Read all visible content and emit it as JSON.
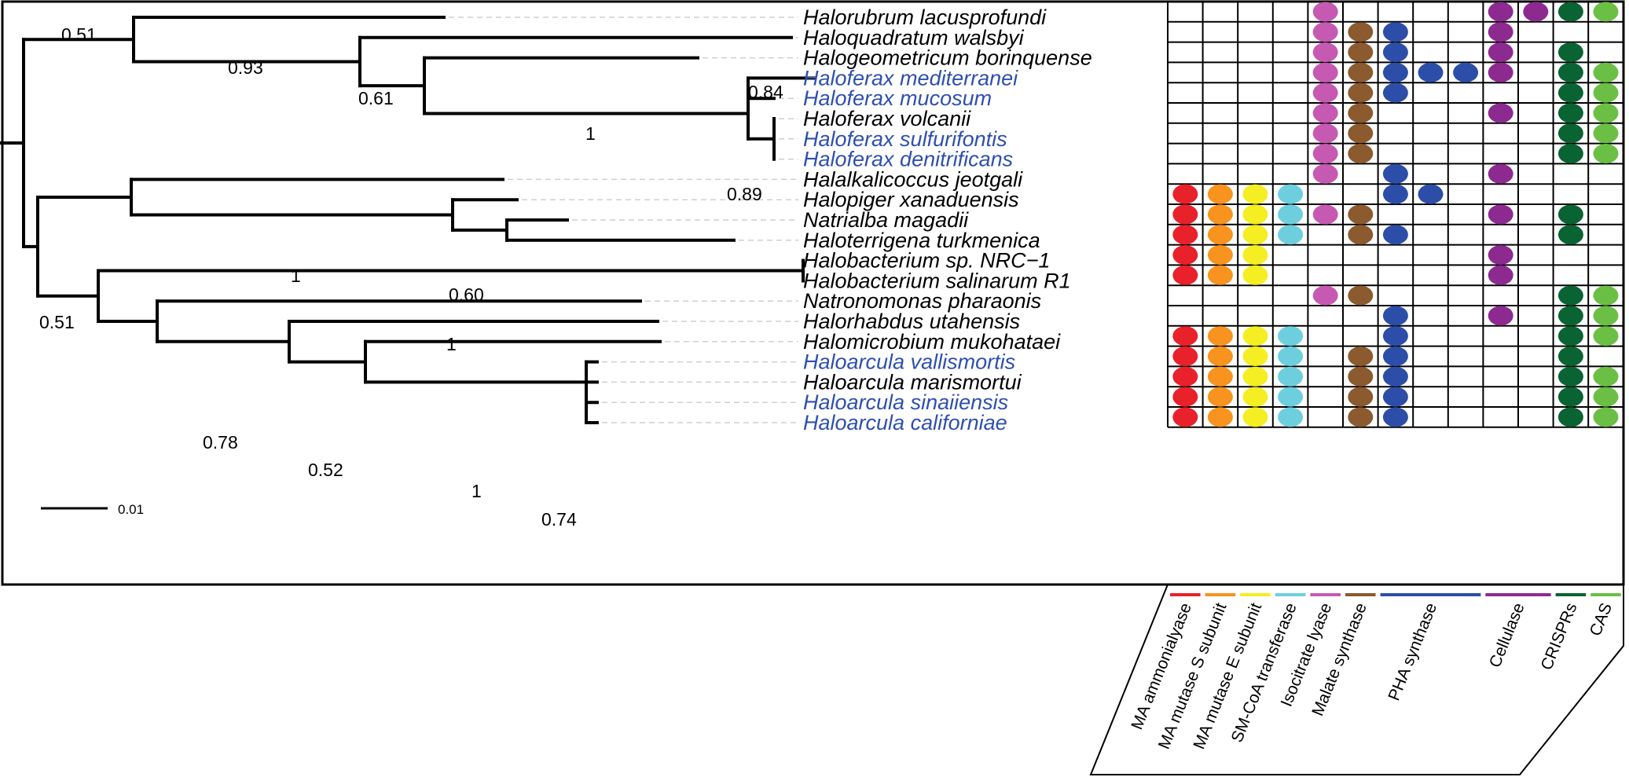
{
  "colors": {
    "novel_taxon": "#2e4fae",
    "known_taxon": "#000000",
    "MA ammonialyase": "#e8212b",
    "MA mutase S subunit": "#f7931e",
    "MA mutase E subunit": "#f4ee22",
    "SM-CoA transferase": "#6dcfde",
    "Isocitrate lyase": "#c65ab2",
    "Malate synthase": "#8b5a2f",
    "PHA synthase": "#2c4ea8",
    "Cellulase": "#8d2a90",
    "CRISPRs": "#0a6332",
    "CAS": "#6bbf44"
  },
  "tree": {
    "scale_bar_label": "0.01",
    "support_values": {
      "n_root_upper": "0.51",
      "n_quad": "0.93",
      "n_geo": "0.61",
      "n_medmuc": "0.84",
      "n_fax": "1",
      "n_vol": "0.89",
      "n_root_lower": "0.51",
      "n_pig": "1",
      "n_nat": "0.60",
      "n_hbac": "1",
      "n_rh": "0.78",
      "n_mic": "0.52",
      "n_arc": "1",
      "n_arc_inner": "0.74"
    }
  },
  "matrix": {
    "columns": [
      {
        "label": "MA ammonialyase",
        "span": 1
      },
      {
        "label": "MA mutase S subunit",
        "span": 1
      },
      {
        "label": "MA mutase E subunit",
        "span": 1
      },
      {
        "label": "SM-CoA transferase",
        "span": 1
      },
      {
        "label": "Isocitrate lyase",
        "span": 1
      },
      {
        "label": "Malate synthase",
        "span": 1
      },
      {
        "label": "PHA synthase",
        "span": 3
      },
      {
        "label": "Cellulase",
        "span": 2
      },
      {
        "label": "CRISPRs",
        "span": 1
      },
      {
        "label": "CAS",
        "span": 1
      }
    ],
    "cell_genes": [
      "MA ammonialyase",
      "MA mutase S subunit",
      "MA mutase E subunit",
      "SM-CoA transferase",
      "Isocitrate lyase",
      "Malate synthase",
      "PHA synthase",
      "PHA synthase",
      "PHA synthase",
      "Cellulase",
      "Cellulase",
      "CRISPRs",
      "CAS"
    ],
    "rows": [
      {
        "taxon": "Halorubrum lacusprofundi",
        "novel": false,
        "presence": [
          0,
          0,
          0,
          0,
          1,
          0,
          0,
          0,
          0,
          1,
          1,
          1,
          1
        ]
      },
      {
        "taxon": "Haloquadratum walsbyi",
        "novel": false,
        "presence": [
          0,
          0,
          0,
          0,
          1,
          1,
          1,
          0,
          0,
          1,
          0,
          0,
          0
        ]
      },
      {
        "taxon": "Halogeometricum borinquense",
        "novel": false,
        "presence": [
          0,
          0,
          0,
          0,
          1,
          1,
          1,
          0,
          0,
          1,
          0,
          1,
          0
        ]
      },
      {
        "taxon": "Haloferax mediterranei",
        "novel": true,
        "presence": [
          0,
          0,
          0,
          0,
          1,
          1,
          1,
          1,
          1,
          1,
          0,
          1,
          1
        ]
      },
      {
        "taxon": "Haloferax mucosum",
        "novel": true,
        "presence": [
          0,
          0,
          0,
          0,
          1,
          1,
          1,
          0,
          0,
          0,
          0,
          1,
          1
        ]
      },
      {
        "taxon": "Haloferax volcanii",
        "novel": false,
        "presence": [
          0,
          0,
          0,
          0,
          1,
          1,
          0,
          0,
          0,
          1,
          0,
          1,
          1
        ]
      },
      {
        "taxon": "Haloferax sulfurifontis",
        "novel": true,
        "presence": [
          0,
          0,
          0,
          0,
          1,
          1,
          0,
          0,
          0,
          0,
          0,
          1,
          1
        ]
      },
      {
        "taxon": "Haloferax denitrificans",
        "novel": true,
        "presence": [
          0,
          0,
          0,
          0,
          1,
          1,
          0,
          0,
          0,
          0,
          0,
          1,
          1
        ]
      },
      {
        "taxon": "Halalkalicoccus jeotgali",
        "novel": false,
        "presence": [
          0,
          0,
          0,
          0,
          1,
          0,
          1,
          0,
          0,
          1,
          0,
          0,
          0
        ]
      },
      {
        "taxon": "Halopiger xanaduensis",
        "novel": false,
        "presence": [
          1,
          1,
          1,
          1,
          0,
          0,
          1,
          1,
          0,
          0,
          0,
          0,
          0
        ]
      },
      {
        "taxon": "Natrialba magadii",
        "novel": false,
        "presence": [
          1,
          1,
          1,
          1,
          1,
          1,
          0,
          0,
          0,
          1,
          0,
          1,
          0
        ]
      },
      {
        "taxon": "Haloterrigena turkmenica",
        "novel": false,
        "presence": [
          1,
          1,
          1,
          1,
          0,
          1,
          1,
          0,
          0,
          0,
          0,
          1,
          0
        ]
      },
      {
        "taxon": "Halobacterium sp. NRC−1",
        "novel": false,
        "presence": [
          1,
          1,
          1,
          0,
          0,
          0,
          0,
          0,
          0,
          1,
          0,
          0,
          0
        ]
      },
      {
        "taxon": "Halobacterium salinarum R1",
        "novel": false,
        "presence": [
          1,
          1,
          1,
          0,
          0,
          0,
          0,
          0,
          0,
          1,
          0,
          0,
          0
        ]
      },
      {
        "taxon": "Natronomonas pharaonis",
        "novel": false,
        "presence": [
          0,
          0,
          0,
          0,
          1,
          1,
          0,
          0,
          0,
          0,
          0,
          1,
          1
        ]
      },
      {
        "taxon": "Halorhabdus utahensis",
        "novel": false,
        "presence": [
          0,
          0,
          0,
          0,
          0,
          0,
          1,
          0,
          0,
          1,
          0,
          1,
          1
        ]
      },
      {
        "taxon": "Halomicrobium mukohataei",
        "novel": false,
        "presence": [
          1,
          1,
          1,
          1,
          0,
          0,
          1,
          0,
          0,
          0,
          0,
          1,
          1
        ]
      },
      {
        "taxon": "Haloarcula vallismortis",
        "novel": true,
        "presence": [
          1,
          1,
          1,
          1,
          0,
          1,
          1,
          0,
          0,
          0,
          0,
          1,
          0
        ]
      },
      {
        "taxon": "Haloarcula marismortui",
        "novel": false,
        "presence": [
          1,
          1,
          1,
          1,
          0,
          1,
          1,
          0,
          0,
          0,
          0,
          1,
          1
        ]
      },
      {
        "taxon": "Haloarcula sinaiiensis",
        "novel": true,
        "presence": [
          1,
          1,
          1,
          1,
          0,
          1,
          1,
          0,
          0,
          0,
          0,
          1,
          1
        ]
      },
      {
        "taxon": "Haloarcula californiae",
        "novel": true,
        "presence": [
          1,
          1,
          1,
          1,
          0,
          1,
          1,
          0,
          0,
          0,
          0,
          1,
          1
        ]
      }
    ]
  }
}
